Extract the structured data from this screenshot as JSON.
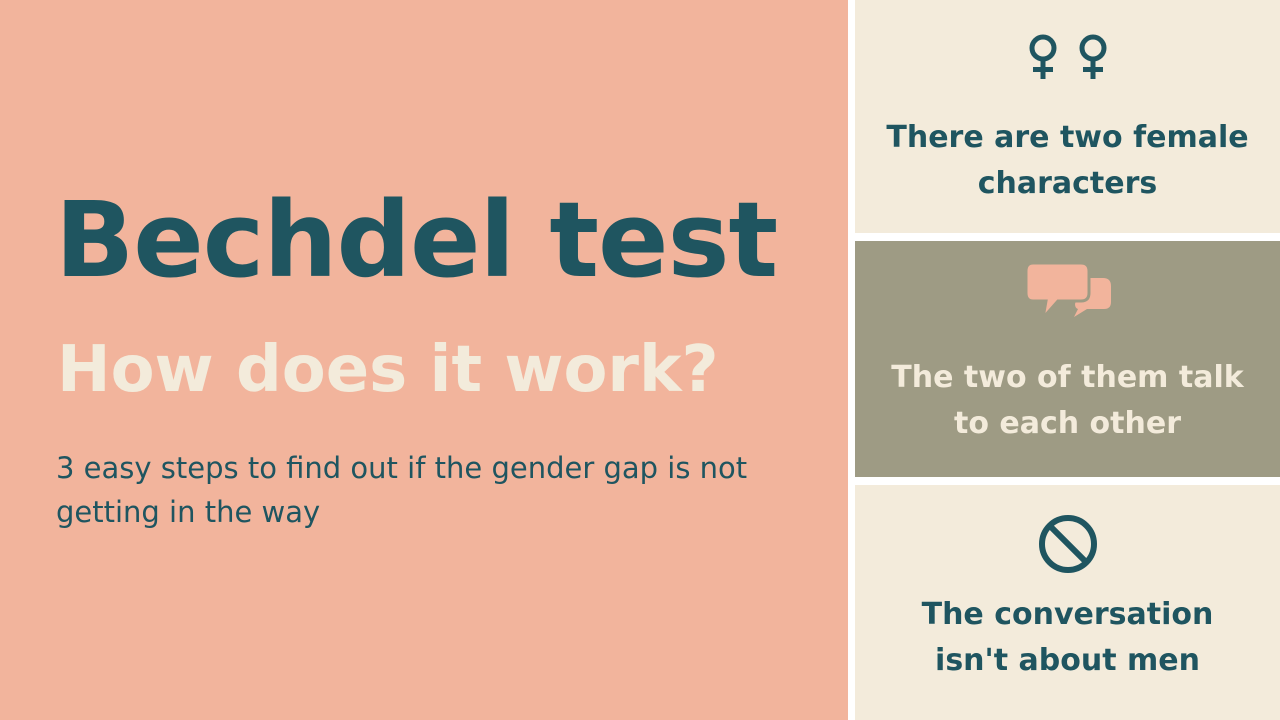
{
  "colors": {
    "coral": "#f2b49c",
    "cream": "#f3ebdb",
    "taupe": "#9e9b84",
    "teal": "#1f5560",
    "peach": "#f2b49c"
  },
  "hero": {
    "title": "Bechdel test",
    "subtitle": "How does it work?",
    "description": "3 easy steps to find out if the gender gap is not getting in the way"
  },
  "steps": [
    {
      "icon": "female-symbol-icon",
      "lines": [
        "There are two female",
        "characters"
      ]
    },
    {
      "icon": "speech-bubbles-icon",
      "lines": [
        "The two of them talk",
        "to each other"
      ]
    },
    {
      "icon": "prohibited-icon",
      "lines": [
        "The conversation",
        "isn't about men"
      ]
    }
  ]
}
